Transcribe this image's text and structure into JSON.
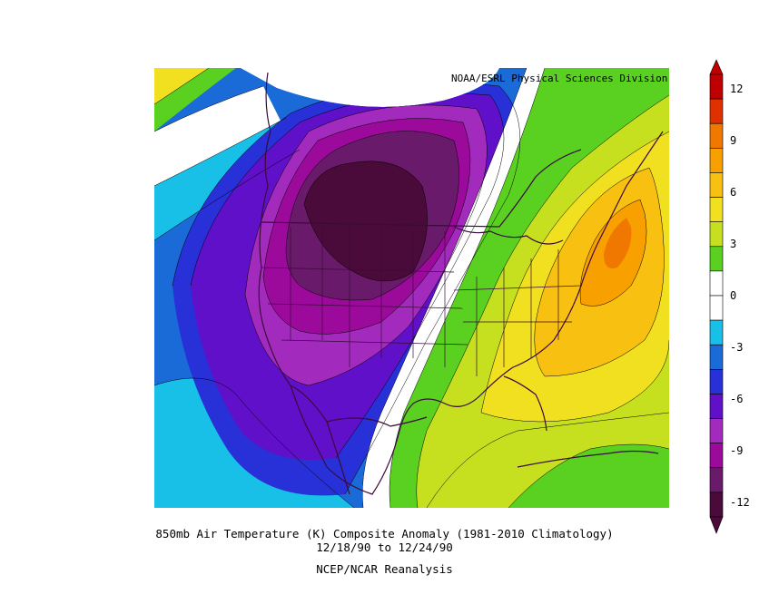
{
  "credit": "NOAA/ESRL Physical Sciences Division",
  "caption": {
    "line1": "850mb Air Temperature (K) Composite Anomaly (1981-2010 Climatology)",
    "line2": "12/18/90  to 12/24/90",
    "line3": "NCEP/NCAR Reanalysis"
  },
  "colorbar": {
    "labels": [
      "12",
      "9",
      "6",
      "3",
      "0",
      "-3",
      "-6",
      "-9",
      "-12"
    ],
    "colors": [
      "#4a0a3a",
      "#6a1a6a",
      "#9b0a9b",
      "#a22bbd",
      "#6010c8",
      "#2830d8",
      "#1a6ad8",
      "#18c0e8",
      "#ffffff",
      "#ffffff",
      "#5ad020",
      "#c6e020",
      "#f0e020",
      "#f8c010",
      "#f8a000",
      "#f07800",
      "#e03000",
      "#c00000"
    ]
  },
  "map": {
    "colors": {
      "deep_purple": "#4a0a3a",
      "plum": "#6a1a6a",
      "magenta": "#9b0a9b",
      "violet": "#a22bbd",
      "indigo": "#6010c8",
      "blue": "#2830d8",
      "mid_blue": "#1a6ad8",
      "cyan": "#18c0e8",
      "white": "#ffffff",
      "green": "#5ad020",
      "lime": "#c6e020",
      "yellow": "#f0e020",
      "gold": "#f8c010",
      "orange": "#f8a000",
      "dark_orange": "#f07800"
    }
  }
}
